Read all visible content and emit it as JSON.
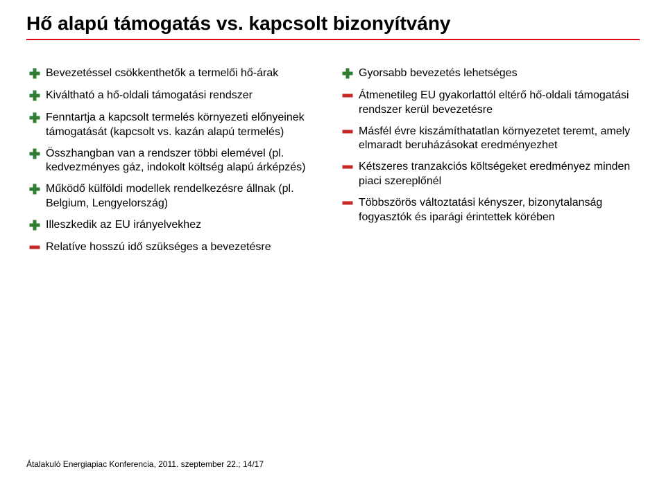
{
  "title": "Hő alapú támogatás vs. kapcsolt bizonyítvány",
  "rule_color": "#e30613",
  "title_fontsize": 28,
  "body_fontsize": 16,
  "footer_fontsize": 12,
  "icon": {
    "plus_color": "#2e7d32",
    "minus_color": "#c62828",
    "stroke_width": 6
  },
  "left": [
    {
      "kind": "plus",
      "text": "Bevezetéssel csökkenthetők a termelői hő-árak"
    },
    {
      "kind": "plus",
      "text": "Kiváltható a hő-oldali támogatási rendszer"
    },
    {
      "kind": "plus",
      "text": "Fenntartja a kapcsolt termelés környezeti előnyeinek támogatását (kapcsolt vs. kazán alapú termelés)"
    },
    {
      "kind": "plus",
      "text": "Összhangban van a rendszer többi elemével (pl. kedvezményes gáz, indokolt költség alapú árképzés)"
    },
    {
      "kind": "plus",
      "text": "Működő külföldi modellek rendelkezésre állnak (pl. Belgium, Lengyelország)"
    },
    {
      "kind": "plus",
      "text": "Illeszkedik az EU irányelvekhez"
    },
    {
      "kind": "minus",
      "text": "Relatíve hosszú idő szükséges a bevezetésre"
    }
  ],
  "right": [
    {
      "kind": "plus",
      "text": "Gyorsabb bevezetés lehetséges"
    },
    {
      "kind": "minus",
      "text": "Átmenetileg EU gyakorlattól eltérő hő-oldali támogatási rendszer kerül bevezetésre"
    },
    {
      "kind": "minus",
      "text": "Másfél évre kiszámíthatatlan környezetet teremt, amely elmaradt beruházásokat eredményezhet"
    },
    {
      "kind": "minus",
      "text": "Kétszeres tranzakciós költségeket eredményez minden piaci szereplőnél"
    },
    {
      "kind": "minus",
      "text": "Többszörös változtatási kényszer, bizonytalanság fogyasztók és iparági érintettek körében"
    }
  ],
  "footer": "Átalakuló Energiapiac Konferencia, 2011. szeptember 22.; 14/17"
}
